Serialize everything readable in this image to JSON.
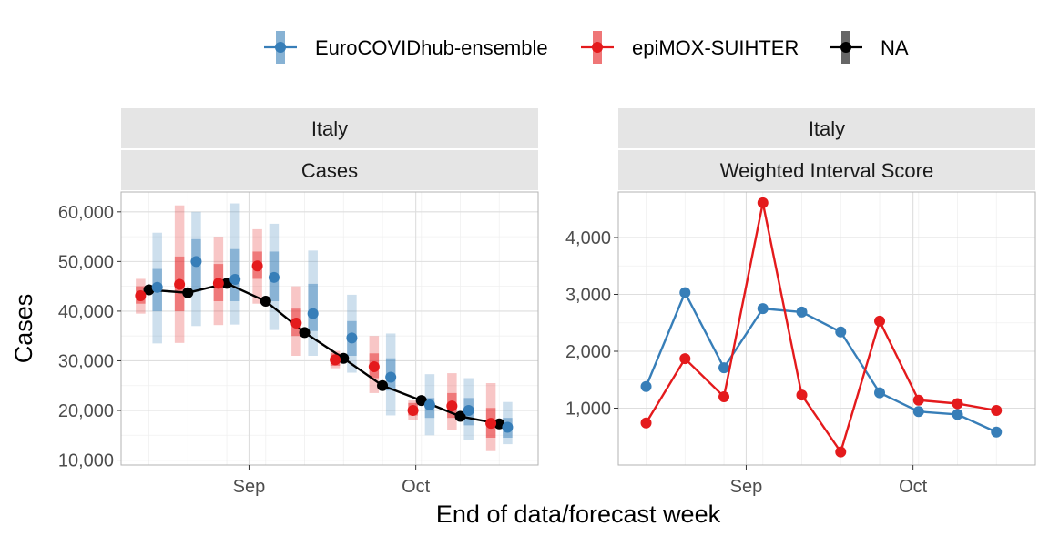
{
  "legend": {
    "entries": [
      {
        "label": "EuroCOVIDhub-ensemble",
        "color": "#377EB8"
      },
      {
        "label": "epiMOX-SUIHTER",
        "color": "#E41A1C"
      },
      {
        "label": "NA",
        "color": "#000000"
      }
    ]
  },
  "xlabel": "End of data/forecast week",
  "chart_data": [
    {
      "type": "line",
      "panel_title": "Italy",
      "panel_subtitle": "Cases",
      "ylabel": "Cases",
      "ylim": [
        9000,
        64000
      ],
      "yticks": [
        10000,
        20000,
        30000,
        40000,
        50000,
        60000
      ],
      "ytick_labels": [
        "10,000",
        "20,000",
        "30,000",
        "40,000",
        "50,000",
        "60,000"
      ],
      "xlim": [
        "2021-08-09",
        "2021-10-23"
      ],
      "xticks": [
        "2021-09-01",
        "2021-10-01"
      ],
      "xtick_labels": [
        "Sep",
        "Oct"
      ],
      "grid": true,
      "truth": {
        "x": [
          "2021-08-14",
          "2021-08-21",
          "2021-08-28",
          "2021-09-04",
          "2021-09-11",
          "2021-09-18",
          "2021-09-25",
          "2021-10-02",
          "2021-10-09",
          "2021-10-16"
        ],
        "y": [
          44300,
          43700,
          45600,
          42000,
          35700,
          30500,
          25000,
          22000,
          18800,
          17300
        ]
      },
      "series": [
        {
          "name": "EuroCOVIDhub-ensemble",
          "color": "#377EB8",
          "x": [
            "2021-08-14",
            "2021-08-21",
            "2021-08-28",
            "2021-09-04",
            "2021-09-11",
            "2021-09-18",
            "2021-09-25",
            "2021-10-02",
            "2021-10-09",
            "2021-10-16"
          ],
          "median": [
            44800,
            50000,
            46400,
            46800,
            39500,
            34600,
            26700,
            21100,
            20000,
            16600
          ],
          "inner": [
            [
              40000,
              48500
            ],
            [
              44000,
              54500
            ],
            [
              42000,
              52500
            ],
            [
              42000,
              52000
            ],
            [
              36000,
              45500
            ],
            [
              31000,
              38000
            ],
            [
              24000,
              30500
            ],
            [
              18500,
              22500
            ],
            [
              17000,
              22500
            ],
            [
              14500,
              18500
            ]
          ],
          "outer": [
            [
              33500,
              55800
            ],
            [
              37000,
              60000
            ],
            [
              37300,
              61700
            ],
            [
              36200,
              57600
            ],
            [
              31000,
              52200
            ],
            [
              27600,
              43300
            ],
            [
              19000,
              35500
            ],
            [
              15000,
              27300
            ],
            [
              14000,
              26500
            ],
            [
              13200,
              21700
            ]
          ]
        },
        {
          "name": "epiMOX-SUIHTER",
          "color": "#E41A1C",
          "x": [
            "2021-08-14",
            "2021-08-21",
            "2021-08-28",
            "2021-09-04",
            "2021-09-11",
            "2021-09-18",
            "2021-09-25",
            "2021-10-02",
            "2021-10-09",
            "2021-10-16"
          ],
          "median": [
            43100,
            45400,
            45600,
            49100,
            37600,
            30200,
            28800,
            20000,
            20900,
            17400
          ],
          "inner": [
            [
              41500,
              45000
            ],
            [
              40000,
              51000
            ],
            [
              42000,
              49500
            ],
            [
              46500,
              52000
            ],
            [
              35000,
              40500
            ],
            [
              29000,
              31500
            ],
            [
              26500,
              31500
            ],
            [
              19000,
              21500
            ],
            [
              18500,
              23500
            ],
            [
              14500,
              20500
            ]
          ],
          "outer": [
            [
              39500,
              46500
            ],
            [
              33600,
              61300
            ],
            [
              37200,
              55000
            ],
            [
              41500,
              56500
            ],
            [
              31000,
              45000
            ],
            [
              28500,
              32000
            ],
            [
              23500,
              35000
            ],
            [
              18000,
              22000
            ],
            [
              16000,
              27500
            ],
            [
              11800,
              25500
            ]
          ]
        }
      ]
    },
    {
      "type": "line",
      "panel_title": "Italy",
      "panel_subtitle": "Weighted Interval Score",
      "ylabel": "",
      "ylim": [
        0,
        4800
      ],
      "yticks": [
        1000,
        2000,
        3000,
        4000
      ],
      "ytick_labels": [
        "1,000",
        "2,000",
        "3,000",
        "4,000"
      ],
      "xlim": [
        "2021-08-09",
        "2021-10-23"
      ],
      "xticks": [
        "2021-09-01",
        "2021-10-01"
      ],
      "xtick_labels": [
        "Sep",
        "Oct"
      ],
      "grid": true,
      "series": [
        {
          "name": "EuroCOVIDhub-ensemble",
          "color": "#377EB8",
          "x": [
            "2021-08-14",
            "2021-08-21",
            "2021-08-28",
            "2021-09-04",
            "2021-09-11",
            "2021-09-18",
            "2021-09-25",
            "2021-10-02",
            "2021-10-09",
            "2021-10-16"
          ],
          "y": [
            1380,
            3030,
            1710,
            2750,
            2690,
            2340,
            1270,
            940,
            890,
            580
          ]
        },
        {
          "name": "epiMOX-SUIHTER",
          "color": "#E41A1C",
          "x": [
            "2021-08-14",
            "2021-08-21",
            "2021-08-28",
            "2021-09-04",
            "2021-09-11",
            "2021-09-18",
            "2021-09-25",
            "2021-10-02",
            "2021-10-09",
            "2021-10-16"
          ],
          "y": [
            740,
            1870,
            1200,
            4610,
            1230,
            230,
            2530,
            1140,
            1080,
            960
          ]
        }
      ]
    }
  ]
}
